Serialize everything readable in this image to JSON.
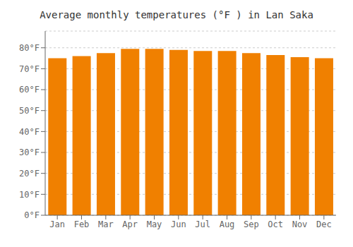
{
  "chart_data": {
    "type": "bar",
    "title": "Average monthly temperatures (°F ) in Lan Saka",
    "categories": [
      "Jan",
      "Feb",
      "Mar",
      "Apr",
      "May",
      "Jun",
      "Jul",
      "Aug",
      "Sep",
      "Oct",
      "Nov",
      "Dec"
    ],
    "values": [
      75.0,
      76.0,
      77.5,
      79.5,
      79.5,
      79.0,
      78.5,
      78.5,
      77.5,
      76.5,
      75.5,
      75.0
    ],
    "color": "#F08000",
    "ylim": [
      0,
      88
    ],
    "yticks": [
      {
        "value": 0,
        "label": "0°F"
      },
      {
        "value": 10,
        "label": "10°F"
      },
      {
        "value": 20,
        "label": "20°F"
      },
      {
        "value": 30,
        "label": "30°F"
      },
      {
        "value": 40,
        "label": "40°F"
      },
      {
        "value": 50,
        "label": "50°F"
      },
      {
        "value": 60,
        "label": "60°F"
      },
      {
        "value": 70,
        "label": "70°F"
      },
      {
        "value": 80,
        "label": "80°F"
      }
    ],
    "grid": true
  }
}
